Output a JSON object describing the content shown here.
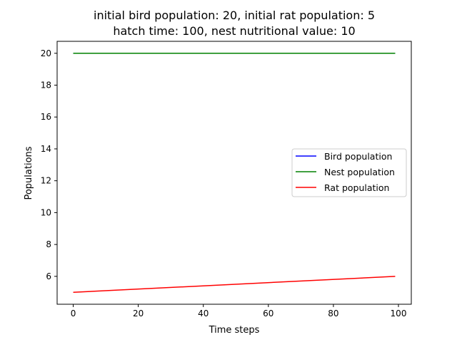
{
  "chart_data": {
    "type": "line",
    "title_lines": [
      "initial bird population: 20, initial rat population: 5",
      "hatch time: 100, nest nutritional value: 10"
    ],
    "xlabel": "Time steps",
    "ylabel": "Populations",
    "xlim": [
      -4.95,
      103.95
    ],
    "ylim": [
      4.25,
      20.75
    ],
    "xticks": [
      0,
      20,
      40,
      60,
      80,
      100
    ],
    "yticks": [
      6,
      8,
      10,
      12,
      14,
      16,
      18,
      20
    ],
    "grid": false,
    "legend_position": "center-right",
    "series": [
      {
        "name": "Bird population",
        "color": "#0000ff",
        "x": [
          0,
          99
        ],
        "y": [
          20,
          20
        ]
      },
      {
        "name": "Nest population",
        "color": "#008000",
        "x": [
          0,
          99
        ],
        "y": [
          20,
          20
        ]
      },
      {
        "name": "Rat population",
        "color": "#ff0000",
        "x": [
          0,
          99
        ],
        "y": [
          5,
          6
        ]
      }
    ]
  }
}
